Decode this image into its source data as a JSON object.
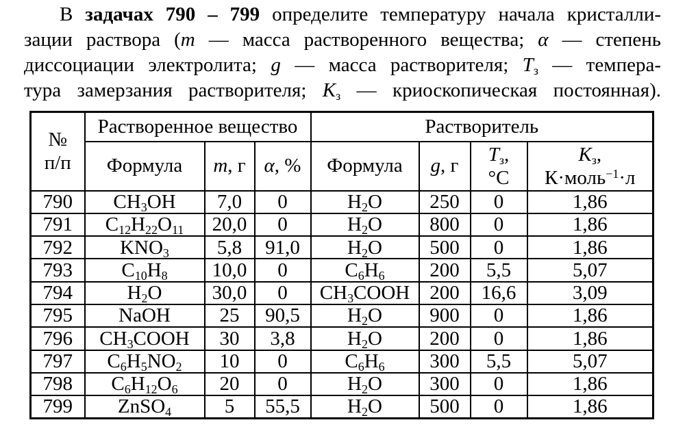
{
  "colors": {
    "ink": "#000000",
    "paper": "#ffffff"
  },
  "intro": {
    "line1": {
      "t1": "В ",
      "bold": "задачах 790 – 799",
      "t2": " определите температуру начала кристалли-"
    },
    "line2": {
      "t1": "зации раствора (",
      "var1": "m",
      "t2": " — масса растворенного вещества; ",
      "var2": "α",
      "t3": " — степень"
    },
    "line3": {
      "t1": "диссоциации электролита; ",
      "var1": "g",
      "t2": " — масса растворителя; ",
      "var2": "T",
      "sub2": "з",
      "t3": " — темпера-"
    },
    "line4": {
      "t1": "тура замерзания растворителя; ",
      "var1": "K",
      "sub1": "з",
      "t2": " — криоскопическая постоянная)."
    }
  },
  "table": {
    "no_header": {
      "line1": "№",
      "line2": "п/п"
    },
    "group_solute": "Растворенное вещество",
    "group_solvent": "Растворитель",
    "col_formula_solute": "Формула",
    "col_m": {
      "var": "m",
      "rest": ", г"
    },
    "col_alpha": {
      "var": "α",
      "rest": ", %"
    },
    "col_formula_solvent": "Формула",
    "col_g": {
      "var": "g",
      "rest": ", г"
    },
    "col_t": {
      "var": "T",
      "sub": "з",
      "comma": ",",
      "unit": "°C"
    },
    "col_k": {
      "var": "K",
      "sub": "з",
      "comma": ",",
      "unit1": "К·моль",
      "sup": "−1",
      "unit2": "·л"
    },
    "rows": [
      {
        "no": "790",
        "solute": "CH3OH",
        "m": "7,0",
        "alpha": "0",
        "solvent": "H2O",
        "g": "250",
        "t": "0",
        "k": "1,86"
      },
      {
        "no": "791",
        "solute": "C12H22O11",
        "m": "20,0",
        "alpha": "0",
        "solvent": "H2O",
        "g": "800",
        "t": "0",
        "k": "1,86"
      },
      {
        "no": "792",
        "solute": "KNO3",
        "m": "5,8",
        "alpha": "91,0",
        "solvent": "H2O",
        "g": "500",
        "t": "0",
        "k": "1,86"
      },
      {
        "no": "793",
        "solute": "C10H8",
        "m": "10,0",
        "alpha": "0",
        "solvent": "C6H6",
        "g": "200",
        "t": "5,5",
        "k": "5,07"
      },
      {
        "no": "794",
        "solute": "H2O",
        "m": "30,0",
        "alpha": "0",
        "solvent": "CH3COOH",
        "g": "200",
        "t": "16,6",
        "k": "3,09"
      },
      {
        "no": "795",
        "solute": "NaOH",
        "m": "25",
        "alpha": "90,5",
        "solvent": "H2O",
        "g": "900",
        "t": "0",
        "k": "1,86"
      },
      {
        "no": "796",
        "solute": "CH3COOH",
        "m": "30",
        "alpha": "3,8",
        "solvent": "H2O",
        "g": "200",
        "t": "0",
        "k": "1,86"
      },
      {
        "no": "797",
        "solute": "C6H5NO2",
        "m": "10",
        "alpha": "0",
        "solvent": "C6H6",
        "g": "300",
        "t": "5,5",
        "k": "5,07"
      },
      {
        "no": "798",
        "solute": "C6H12O6",
        "m": "20",
        "alpha": "0",
        "solvent": "H2O",
        "g": "300",
        "t": "0",
        "k": "1,86"
      },
      {
        "no": "799",
        "solute": "ZnSO4",
        "m": "5",
        "alpha": "55,5",
        "solvent": "H2O",
        "g": "500",
        "t": "0",
        "k": "1,86"
      }
    ]
  }
}
